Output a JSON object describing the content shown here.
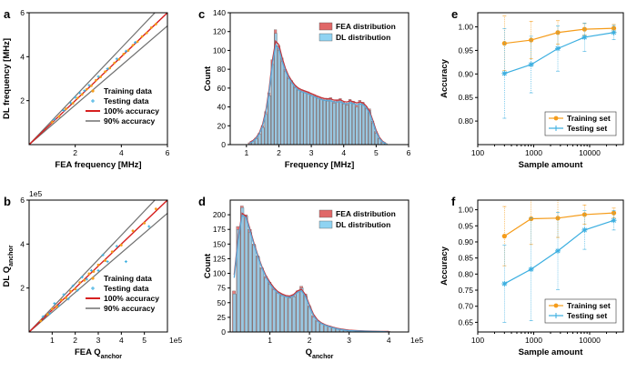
{
  "chart_data": [
    {
      "panel": "a",
      "type": "scatter",
      "xlabel": "FEA frequency [MHz]",
      "ylabel": "DL frequency [MHz]",
      "xlim": [
        0,
        6
      ],
      "ylim": [
        0,
        6
      ],
      "xticks": [
        "2",
        "4",
        "6"
      ],
      "yticks": [
        "2",
        "4",
        "6"
      ],
      "legend": [
        "Training data",
        "Testing data",
        "100% accuracy",
        "90% accuracy"
      ],
      "legend_position": "bottom-right",
      "series": [
        {
          "name": "Training data",
          "x": [
            1.0,
            1.3,
            1.6,
            1.9,
            2.1,
            2.3,
            2.5,
            2.7,
            2.9,
            3.1,
            3.3,
            3.5,
            3.7,
            3.9,
            4.1,
            4.3,
            4.5,
            4.7,
            4.9,
            5.1,
            5.3,
            5.5
          ],
          "y": [
            1.02,
            1.28,
            1.63,
            1.88,
            2.12,
            2.28,
            2.52,
            2.68,
            2.93,
            3.08,
            3.32,
            3.48,
            3.72,
            3.88,
            4.12,
            4.28,
            4.52,
            4.68,
            4.92,
            5.08,
            5.32,
            5.48
          ]
        },
        {
          "name": "Testing data",
          "x": [
            1.1,
            1.5,
            1.8,
            2.0,
            2.2,
            2.4,
            2.6,
            3.0,
            3.4,
            3.8,
            4.2,
            4.6
          ],
          "y": [
            1.15,
            1.55,
            1.9,
            2.15,
            2.35,
            2.45,
            2.7,
            3.1,
            3.45,
            3.9,
            4.25,
            4.65
          ]
        }
      ],
      "lines": [
        {
          "name": "100% accuracy",
          "slope": 1
        },
        {
          "name": "90% accuracy",
          "slope": [
            0.9,
            1.1
          ]
        }
      ]
    },
    {
      "panel": "b",
      "type": "scatter",
      "xlabel": "FEA Q_anchor",
      "ylabel": "DL Q_anchor",
      "scale_label": "1e5",
      "xlim": [
        0,
        6
      ],
      "ylim": [
        0,
        6
      ],
      "xticks": [
        "1",
        "2",
        "3",
        "4",
        "5",
        "1e5"
      ],
      "yticks": [
        "2",
        "4",
        "6"
      ],
      "legend": [
        "Training data",
        "Testing data",
        "100% accuracy",
        "90% accuracy"
      ],
      "legend_position": "bottom-right",
      "series": [
        {
          "name": "Training data",
          "x": [
            0.5,
            0.8,
            1.0,
            1.2,
            1.4,
            1.6,
            1.8,
            2.0,
            2.2,
            2.4,
            2.6,
            2.8,
            3.0,
            3.3,
            3.6,
            4.0,
            4.5,
            5.0,
            5.5
          ],
          "y": [
            0.5,
            0.8,
            1.05,
            1.15,
            1.45,
            1.55,
            1.85,
            1.95,
            2.25,
            2.35,
            2.65,
            2.75,
            3.05,
            3.25,
            3.65,
            3.95,
            4.6,
            4.95,
            5.6
          ]
        },
        {
          "name": "Testing data",
          "x": [
            0.6,
            0.9,
            1.1,
            1.3,
            1.5,
            1.7,
            1.9,
            2.1,
            2.3,
            2.5,
            2.7,
            3.0,
            3.2,
            3.4,
            3.8,
            4.2,
            5.2
          ],
          "y": [
            0.7,
            0.85,
            1.3,
            1.2,
            1.7,
            1.5,
            2.1,
            1.9,
            2.5,
            2.4,
            2.8,
            2.8,
            3.5,
            3.2,
            3.9,
            3.2,
            4.8
          ]
        }
      ],
      "lines": [
        {
          "name": "100% accuracy",
          "slope": 1
        },
        {
          "name": "90% accuracy",
          "slope": [
            0.9,
            1.1
          ]
        }
      ]
    },
    {
      "panel": "c",
      "type": "bar",
      "xlabel": "Frequency [MHz]",
      "ylabel": "Count",
      "xlim": [
        0.5,
        6
      ],
      "ylim": [
        0,
        140
      ],
      "xticks": [
        "1",
        "2",
        "3",
        "4",
        "5",
        "6"
      ],
      "yticks": [
        "0",
        "20",
        "40",
        "60",
        "80",
        "100",
        "120",
        "140"
      ],
      "legend": [
        "FEA distribution",
        "DL distribution"
      ],
      "legend_position": "top-right",
      "x": [
        1.1,
        1.2,
        1.3,
        1.4,
        1.5,
        1.6,
        1.7,
        1.8,
        1.9,
        2.0,
        2.1,
        2.2,
        2.3,
        2.4,
        2.5,
        2.6,
        2.7,
        2.8,
        2.9,
        3.0,
        3.1,
        3.2,
        3.3,
        3.4,
        3.5,
        3.6,
        3.7,
        3.8,
        3.9,
        4.0,
        4.1,
        4.2,
        4.3,
        4.4,
        4.5,
        4.6,
        4.7,
        4.8,
        4.9,
        5.0,
        5.1,
        5.2,
        5.3
      ],
      "series": [
        {
          "name": "FEA distribution",
          "values": [
            2,
            4,
            7,
            12,
            20,
            35,
            55,
            90,
            122,
            105,
            92,
            80,
            72,
            68,
            62,
            60,
            58,
            57,
            56,
            54,
            53,
            51,
            50,
            49,
            48,
            50,
            46,
            47,
            49,
            45,
            44,
            48,
            46,
            42,
            47,
            45,
            40,
            38,
            25,
            14,
            7,
            3,
            1
          ]
        },
        {
          "name": "DL distribution",
          "values": [
            1,
            3,
            6,
            11,
            18,
            32,
            52,
            85,
            118,
            100,
            88,
            78,
            70,
            66,
            60,
            58,
            56,
            55,
            54,
            52,
            51,
            49,
            48,
            47,
            46,
            48,
            44,
            45,
            47,
            43,
            42,
            46,
            44,
            40,
            45,
            43,
            38,
            36,
            23,
            12,
            6,
            2,
            1
          ]
        }
      ],
      "fit_curves": [
        "FEA distribution",
        "DL distribution"
      ]
    },
    {
      "panel": "d",
      "type": "bar",
      "xlabel": "Q_anchor",
      "ylabel": "Count",
      "scale_label": "1e5",
      "xlim": [
        0,
        4.5
      ],
      "ylim": [
        0,
        225
      ],
      "xticks": [
        "1",
        "2",
        "3",
        "4",
        "1e5"
      ],
      "yticks": [
        "0",
        "25",
        "50",
        "75",
        "100",
        "125",
        "150",
        "175",
        "200"
      ],
      "legend": [
        "FEA distribution",
        "DL distribution"
      ],
      "legend_position": "top-right",
      "x": [
        0.1,
        0.2,
        0.3,
        0.4,
        0.5,
        0.6,
        0.7,
        0.8,
        0.9,
        1.0,
        1.1,
        1.2,
        1.3,
        1.4,
        1.5,
        1.6,
        1.7,
        1.8,
        1.9,
        2.0,
        2.1,
        2.2,
        2.3,
        2.4,
        2.5,
        2.6,
        2.7,
        2.8,
        2.9,
        3.0,
        3.2,
        3.4,
        3.6,
        3.8,
        4.0
      ],
      "series": [
        {
          "name": "FEA distribution",
          "values": [
            70,
            180,
            215,
            200,
            175,
            150,
            130,
            110,
            95,
            85,
            75,
            68,
            65,
            62,
            60,
            63,
            70,
            78,
            65,
            45,
            28,
            20,
            15,
            12,
            10,
            8,
            6,
            5,
            4,
            3,
            2,
            2,
            1,
            1,
            1
          ]
        },
        {
          "name": "DL distribution",
          "values": [
            65,
            175,
            212,
            198,
            170,
            148,
            128,
            108,
            92,
            82,
            72,
            66,
            62,
            60,
            58,
            60,
            68,
            75,
            62,
            42,
            25,
            18,
            14,
            11,
            9,
            7,
            5,
            4,
            3,
            2,
            2,
            1,
            1,
            1,
            0
          ]
        }
      ],
      "fit_curves": [
        "FEA distribution",
        "DL distribution"
      ]
    },
    {
      "panel": "e",
      "type": "line",
      "xlabel": "Sample amount",
      "ylabel": "Accuracy",
      "xscale": "log",
      "xlim": [
        100,
        40000
      ],
      "ylim": [
        0.75,
        1.03
      ],
      "xticks": [
        "100",
        "1000",
        "10000"
      ],
      "yticks": [
        "0.80",
        "0.85",
        "0.90",
        "0.95",
        "1.00"
      ],
      "legend": [
        "Training set",
        "Testing set"
      ],
      "legend_position": "bottom-right",
      "x": [
        300,
        900,
        2700,
        8100,
        27000
      ],
      "series": [
        {
          "name": "Training set",
          "values": [
            0.965,
            0.972,
            0.988,
            0.995,
            0.997
          ],
          "err": [
            0.058,
            0.04,
            0.025,
            0.012,
            0.008
          ]
        },
        {
          "name": "Testing set",
          "values": [
            0.901,
            0.92,
            0.954,
            0.978,
            0.988
          ],
          "err": [
            0.095,
            0.06,
            0.048,
            0.03,
            0.015
          ]
        }
      ]
    },
    {
      "panel": "f",
      "type": "line",
      "xlabel": "Sample amount",
      "ylabel": "Accuracy",
      "xscale": "log",
      "xlim": [
        100,
        40000
      ],
      "ylim": [
        0.62,
        1.03
      ],
      "xticks": [
        "100",
        "1000",
        "10000"
      ],
      "yticks": [
        "0.65",
        "0.70",
        "0.75",
        "0.80",
        "0.85",
        "0.90",
        "0.95",
        "1.00"
      ],
      "legend": [
        "Training set",
        "Testing set"
      ],
      "legend_position": "bottom-right",
      "x": [
        300,
        900,
        2700,
        8100,
        27000
      ],
      "series": [
        {
          "name": "Training set",
          "values": [
            0.918,
            0.972,
            0.974,
            0.985,
            0.99
          ],
          "err": [
            0.092,
            0.08,
            0.06,
            0.03,
            0.015
          ]
        },
        {
          "name": "Testing set",
          "values": [
            0.77,
            0.815,
            0.872,
            0.937,
            0.967
          ],
          "err": [
            0.12,
            0.16,
            0.12,
            0.06,
            0.03
          ]
        }
      ]
    }
  ],
  "colors": {
    "training": "#f59c1a",
    "testing": "#3aaee0",
    "fea_bar": "#e06868",
    "dl_bar": "#8fd3f2",
    "fea_curve": "#c0343a",
    "dl_curve": "#5aa8d8",
    "line100": "#d62020",
    "line90": "#707070"
  }
}
